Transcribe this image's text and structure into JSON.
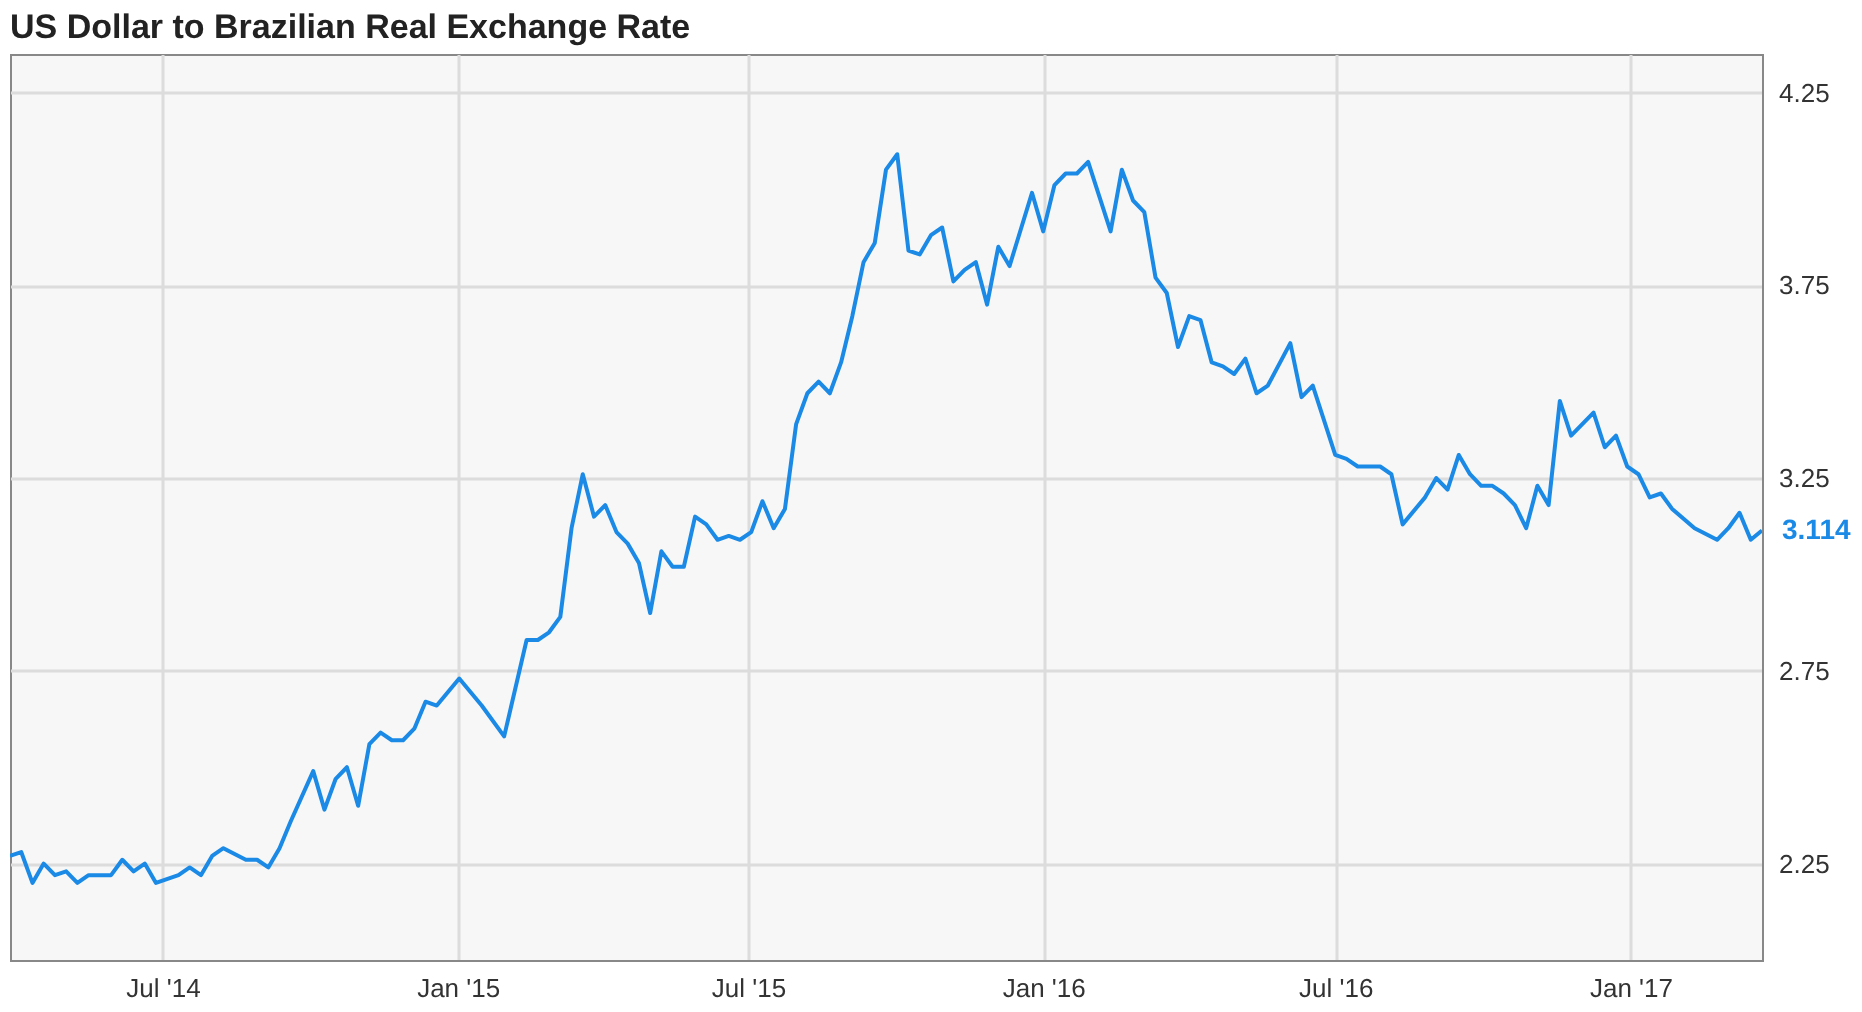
{
  "chart_data": {
    "type": "line",
    "title": "US Dollar to Brazilian Real Exchange Rate",
    "x": [
      "2014-03-28",
      "2014-04-04",
      "2014-04-11",
      "2014-04-18",
      "2014-04-25",
      "2014-05-02",
      "2014-05-09",
      "2014-05-16",
      "2014-05-30",
      "2014-06-06",
      "2014-06-13",
      "2014-06-20",
      "2014-06-27",
      "2014-07-11",
      "2014-07-18",
      "2014-07-25",
      "2014-08-01",
      "2014-08-08",
      "2014-08-22",
      "2014-08-29",
      "2014-09-05",
      "2014-09-12",
      "2014-09-19",
      "2014-10-03",
      "2014-10-10",
      "2014-10-17",
      "2014-10-24",
      "2014-10-31",
      "2014-11-07",
      "2014-11-14",
      "2014-11-21",
      "2014-11-28",
      "2014-12-05",
      "2014-12-12",
      "2014-12-19",
      "2015-01-02",
      "2015-01-16",
      "2015-01-30",
      "2015-02-13",
      "2015-02-20",
      "2015-02-27",
      "2015-03-06",
      "2015-03-13",
      "2015-03-20",
      "2015-03-27",
      "2015-04-03",
      "2015-04-10",
      "2015-04-17",
      "2015-04-24",
      "2015-05-01",
      "2015-05-08",
      "2015-05-15",
      "2015-05-22",
      "2015-05-29",
      "2015-06-05",
      "2015-06-12",
      "2015-06-19",
      "2015-06-26",
      "2015-07-03",
      "2015-07-10",
      "2015-07-17",
      "2015-07-24",
      "2015-07-31",
      "2015-08-07",
      "2015-08-14",
      "2015-08-21",
      "2015-08-28",
      "2015-09-04",
      "2015-09-11",
      "2015-09-18",
      "2015-09-25",
      "2015-10-02",
      "2015-10-09",
      "2015-10-16",
      "2015-10-23",
      "2015-10-30",
      "2015-11-06",
      "2015-11-13",
      "2015-11-20",
      "2015-11-27",
      "2015-12-04",
      "2015-12-11",
      "2015-12-25",
      "2016-01-01",
      "2016-01-08",
      "2016-01-15",
      "2016-01-22",
      "2016-01-29",
      "2016-02-05",
      "2016-02-12",
      "2016-02-19",
      "2016-02-26",
      "2016-03-04",
      "2016-03-11",
      "2016-03-18",
      "2016-03-25",
      "2016-04-01",
      "2016-04-08",
      "2016-04-15",
      "2016-04-22",
      "2016-04-29",
      "2016-05-06",
      "2016-05-13",
      "2016-05-20",
      "2016-06-03",
      "2016-06-10",
      "2016-06-17",
      "2016-07-01",
      "2016-07-08",
      "2016-07-15",
      "2016-07-29",
      "2016-08-05",
      "2016-08-12",
      "2016-08-26",
      "2016-09-02",
      "2016-09-09",
      "2016-09-16",
      "2016-09-23",
      "2016-09-30",
      "2016-10-07",
      "2016-10-14",
      "2016-10-21",
      "2016-10-28",
      "2016-11-04",
      "2016-11-11",
      "2016-11-18",
      "2016-11-25",
      "2016-12-09",
      "2016-12-16",
      "2016-12-23",
      "2016-12-30",
      "2017-01-06",
      "2017-01-13",
      "2017-01-20",
      "2017-01-27",
      "2017-02-10",
      "2017-02-24",
      "2017-03-03",
      "2017-03-10",
      "2017-03-17",
      "2017-03-24"
    ],
    "series": [
      {
        "color": "#1a8ae6",
        "values": [
          2.27,
          2.28,
          2.2,
          2.25,
          2.22,
          2.23,
          2.2,
          2.22,
          2.22,
          2.26,
          2.23,
          2.25,
          2.2,
          2.22,
          2.24,
          2.22,
          2.27,
          2.29,
          2.26,
          2.26,
          2.24,
          2.29,
          2.36,
          2.49,
          2.39,
          2.47,
          2.5,
          2.4,
          2.56,
          2.59,
          2.57,
          2.57,
          2.6,
          2.67,
          2.66,
          2.73,
          2.66,
          2.58,
          2.83,
          2.83,
          2.85,
          2.89,
          3.12,
          3.26,
          3.15,
          3.18,
          3.11,
          3.08,
          3.03,
          2.9,
          3.06,
          3.02,
          3.02,
          3.15,
          3.13,
          3.09,
          3.1,
          3.09,
          3.11,
          3.19,
          3.12,
          3.17,
          3.39,
          3.47,
          3.5,
          3.47,
          3.55,
          3.67,
          3.81,
          3.86,
          4.05,
          4.09,
          3.84,
          3.83,
          3.88,
          3.9,
          3.76,
          3.79,
          3.81,
          3.7,
          3.85,
          3.8,
          3.99,
          3.89,
          4.01,
          4.04,
          4.04,
          4.07,
          3.98,
          3.89,
          4.05,
          3.97,
          3.94,
          3.77,
          3.73,
          3.59,
          3.67,
          3.66,
          3.55,
          3.54,
          3.52,
          3.56,
          3.47,
          3.49,
          3.6,
          3.46,
          3.49,
          3.31,
          3.3,
          3.28,
          3.28,
          3.26,
          3.13,
          3.2,
          3.25,
          3.22,
          3.31,
          3.26,
          3.23,
          3.23,
          3.21,
          3.18,
          3.12,
          3.23,
          3.18,
          3.45,
          3.36,
          3.42,
          3.33,
          3.36,
          3.28,
          3.26,
          3.2,
          3.21,
          3.17,
          3.12,
          3.09,
          3.12,
          3.16,
          3.09,
          3.114
        ]
      }
    ],
    "xlim": [
      "2014-03-28",
      "2017-03-24"
    ],
    "xticks": [
      {
        "value": "2014-07-01",
        "label": "Jul '14"
      },
      {
        "value": "2015-01-01",
        "label": "Jan '15"
      },
      {
        "value": "2015-07-01",
        "label": "Jul '15"
      },
      {
        "value": "2016-01-01",
        "label": "Jan '16"
      },
      {
        "value": "2016-07-01",
        "label": "Jul '16"
      },
      {
        "value": "2017-01-01",
        "label": "Jan '17"
      }
    ],
    "ylim": [
      2.0,
      4.35
    ],
    "yticks": [
      2.25,
      2.75,
      3.25,
      3.75,
      4.25
    ],
    "grid": true,
    "line_style": "solid",
    "annotations": [
      {
        "text": "3.114",
        "x": "2017-03-24",
        "y": 3.114
      }
    ]
  }
}
